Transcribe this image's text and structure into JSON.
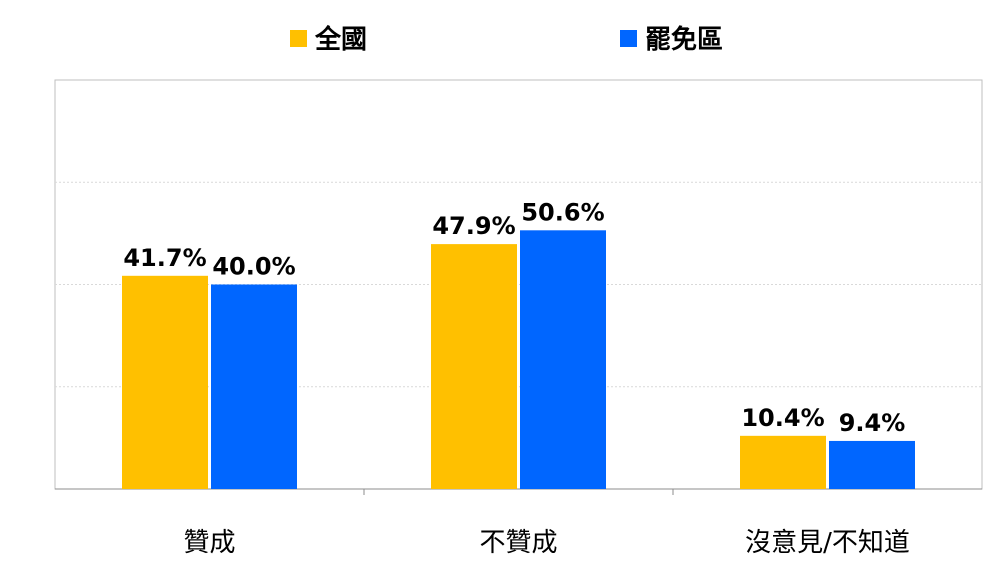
{
  "chart_data": {
    "type": "bar",
    "categories": [
      "贊成",
      "不贊成",
      "沒意見/不知道"
    ],
    "series": [
      {
        "name": "全國",
        "color": "#FFC000",
        "values": [
          41.7,
          47.9,
          10.4
        ],
        "labels": [
          "41.7%",
          "47.9%",
          "10.4%"
        ]
      },
      {
        "name": "罷免區",
        "color": "#0066FF",
        "values": [
          40.0,
          50.6,
          9.4
        ],
        "labels": [
          "40.0%",
          "50.6%",
          "9.4%"
        ]
      }
    ],
    "ylim": [
      0,
      80
    ],
    "grid": true,
    "legend_position": "top"
  }
}
